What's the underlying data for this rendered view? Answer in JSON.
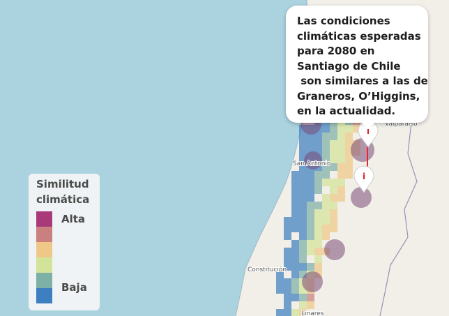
{
  "callout": {
    "text": "Las condiciones\nclimáticas esperadas\npara 2080 en\nSantiago de Chile\n son similares a las de\nGraneros, O’Higgins,\nen la actualidad."
  },
  "legend": {
    "title_line1": "Similitud",
    "title_line2": "climática",
    "high_label": "Alta",
    "low_label": "Baja",
    "colors": [
      "#a83a7a",
      "#c9807e",
      "#efc887",
      "#d3e39a",
      "#7db0a6",
      "#3d7fc0"
    ]
  },
  "map": {
    "ocean_color": "#aad3df",
    "land_color": "#f2efe9",
    "places": [
      {
        "name": "Valparaíso"
      },
      {
        "name": "San Antonio"
      },
      {
        "name": "Constitución"
      },
      {
        "name": "Linares"
      }
    ],
    "markers": [
      {
        "icon": "info-icon",
        "glyph": "i"
      },
      {
        "icon": "info-icon",
        "glyph": "i"
      }
    ]
  }
}
